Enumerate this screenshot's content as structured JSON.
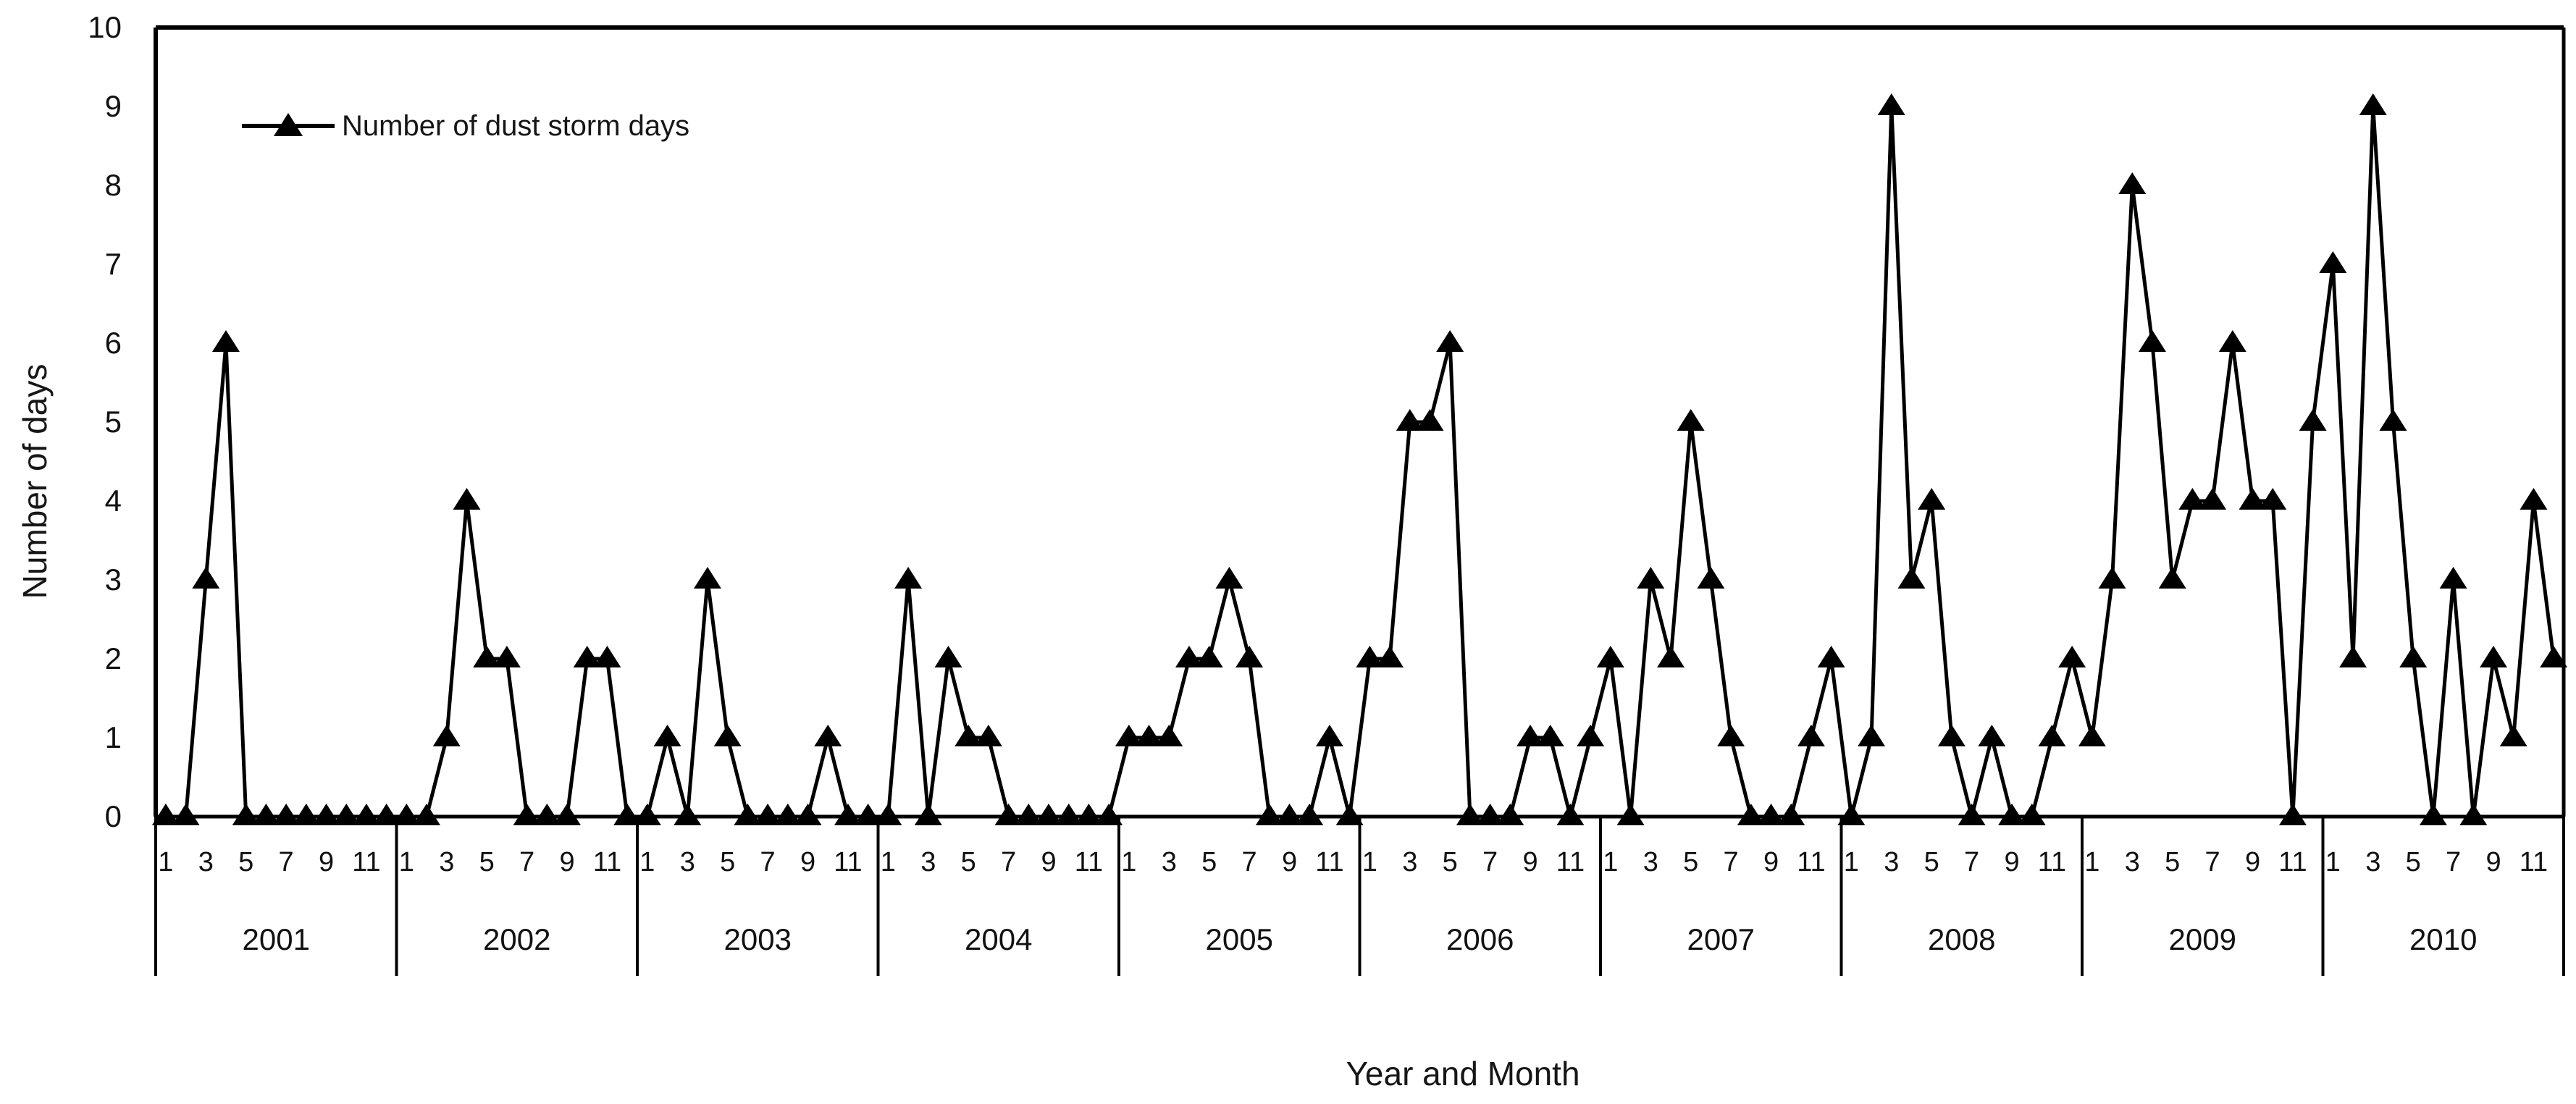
{
  "legend": {
    "label": "Number of dust storm days"
  },
  "axes": {
    "y_title": "Number of days",
    "x_title": "Year and Month"
  },
  "chart_data": {
    "type": "line",
    "title": "",
    "xlabel": "Year and Month",
    "ylabel": "Number of days",
    "ylim": [
      0,
      10
    ],
    "yticks": [
      "0",
      "1",
      "2",
      "3",
      "4",
      "5",
      "6",
      "7",
      "8",
      "9",
      "10"
    ],
    "grid": false,
    "legend_position": "top-left",
    "background_color": "#ffffff",
    "line_color": "#000000",
    "marker": "triangle-up",
    "years": [
      "2001",
      "2002",
      "2003",
      "2004",
      "2005",
      "2006",
      "2007",
      "2008",
      "2009",
      "2010"
    ],
    "months_per_year": 12,
    "month_tick_labels": [
      "1",
      "3",
      "5",
      "7",
      "9",
      "11"
    ],
    "series": [
      {
        "name": "Number of dust storm days",
        "values_by_year": {
          "2001": [
            0,
            0,
            3,
            6,
            0,
            0,
            0,
            0,
            0,
            0,
            0,
            0
          ],
          "2002": [
            0,
            0,
            1,
            4,
            2,
            2,
            0,
            0,
            0,
            2,
            2,
            0
          ],
          "2003": [
            0,
            1,
            0,
            3,
            1,
            0,
            0,
            0,
            0,
            1,
            0,
            0
          ],
          "2004": [
            0,
            3,
            0,
            2,
            1,
            1,
            0,
            0,
            0,
            0,
            0,
            0
          ],
          "2005": [
            1,
            1,
            1,
            2,
            2,
            3,
            2,
            0,
            0,
            0,
            1,
            0
          ],
          "2006": [
            2,
            2,
            5,
            5,
            6,
            0,
            0,
            0,
            1,
            1,
            0,
            1
          ],
          "2007": [
            2,
            0,
            3,
            2,
            5,
            3,
            1,
            0,
            0,
            0,
            1,
            2
          ],
          "2008": [
            0,
            1,
            9,
            3,
            4,
            1,
            0,
            1,
            0,
            0,
            1,
            2
          ],
          "2009": [
            1,
            3,
            8,
            6,
            3,
            4,
            4,
            6,
            4,
            4,
            0,
            5
          ],
          "2010": [
            7,
            2,
            9,
            5,
            2,
            0,
            3,
            0,
            2,
            1,
            4,
            2
          ]
        }
      }
    ]
  }
}
